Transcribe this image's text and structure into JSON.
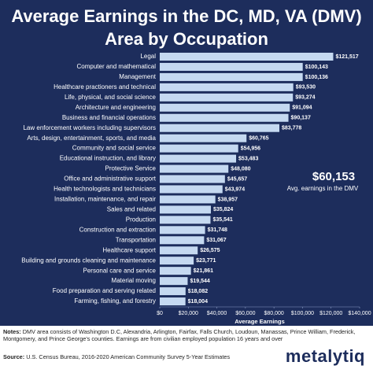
{
  "chart_data": {
    "type": "barh",
    "title": "Average Earnings in the DC, MD, VA (DMV) Area by Occupation",
    "categories": [
      "Legal",
      "Computer and mathematical",
      "Management",
      "Healthcare practioners and technical",
      "Life, physical, and social science",
      "Architecture and engineering",
      "Business and financial operations",
      "Law enforcement workers including supervisors",
      "Arts, design, entertainment, sports, and media",
      "Community and social service",
      "Educational instruction, and library",
      "Protective Service",
      "Office and administrative support",
      "Health technologists and technicians",
      "Installation, maintenance, and repair",
      "Sales and related",
      "Production",
      "Construction and extraction",
      "Transportation",
      "Healthcare support",
      "Building and grounds cleaning and maintenance",
      "Personal care and service",
      "Material moving",
      "Food preparation and serving related",
      "Farming, fishing, and forestry"
    ],
    "values": [
      121517,
      100143,
      100136,
      93530,
      93274,
      91094,
      90137,
      83778,
      60765,
      54956,
      53483,
      48080,
      45657,
      43974,
      38957,
      35824,
      35541,
      31748,
      31067,
      26575,
      23771,
      21861,
      19544,
      18082,
      18004
    ],
    "value_labels": [
      "$121,517",
      "$100,143",
      "$100,136",
      "$93,530",
      "$93,274",
      "$91,094",
      "$90,137",
      "$83,778",
      "$60,765",
      "$54,956",
      "$53,483",
      "$48,080",
      "$45,657",
      "$43,974",
      "$38,957",
      "$35,824",
      "$35,541",
      "$31,748",
      "$31,067",
      "$26,575",
      "$23,771",
      "$21,861",
      "$19,544",
      "$18,082",
      "$18,004"
    ],
    "color": "#c5d9f1",
    "xlim": [
      0,
      140000
    ],
    "xticks": [
      {
        "value": 0,
        "label": "$0"
      },
      {
        "value": 20000,
        "label": "$20,000"
      },
      {
        "value": 40000,
        "label": "$40,000"
      },
      {
        "value": 60000,
        "label": "$60,000"
      },
      {
        "value": 80000,
        "label": "$80,000"
      },
      {
        "value": 100000,
        "label": "$100,000"
      },
      {
        "value": 120000,
        "label": "$120,000"
      },
      {
        "value": 140000,
        "label": "$140,000"
      }
    ],
    "xlabel": "Average Earnings",
    "annotation_label": "$60,153",
    "annotation_text": "Avg. earnings in the DMV"
  },
  "footer": {
    "notes_label": "Notes:",
    "notes": "DMV area consists of Washington D.C, Alexandria, Arlington, Fairfax, Falls Church, Loudoun, Manassas, Prince William, Frederick, Montgomery, and Prince George's counties. Earnings are from civilian employed population 16 years and over",
    "source_label": "Source:",
    "source": "U.S. Census Bureau, 2016-2020 American Community Survey 5-Year Estimates",
    "brand": "metalytiq"
  }
}
